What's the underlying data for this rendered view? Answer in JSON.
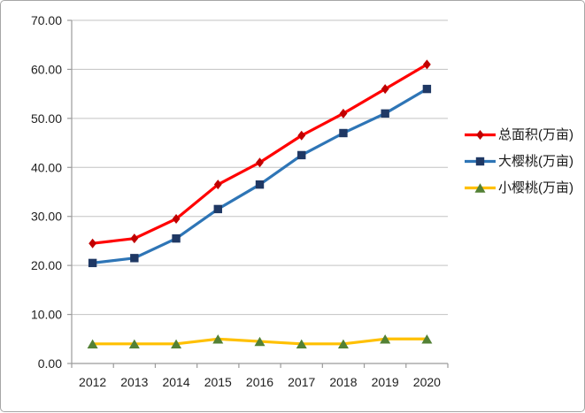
{
  "chart_data": {
    "type": "line",
    "title": "",
    "xlabel": "",
    "ylabel": "",
    "categories": [
      "2012",
      "2013",
      "2014",
      "2015",
      "2016",
      "2017",
      "2018",
      "2019",
      "2020"
    ],
    "series": [
      {
        "name": "总面积(万亩)",
        "values": [
          24.5,
          25.5,
          29.5,
          36.5,
          41,
          46.5,
          51,
          56,
          61
        ],
        "line_color": "#ff0000",
        "marker_color": "#c00000",
        "marker": "diamond"
      },
      {
        "name": "大樱桃(万亩)",
        "values": [
          20.5,
          21.5,
          25.5,
          31.5,
          36.5,
          42.5,
          47,
          51,
          56
        ],
        "line_color": "#2e75b6",
        "marker_color": "#1f3864",
        "marker": "square"
      },
      {
        "name": "小樱桃(万亩)",
        "values": [
          4,
          4,
          4,
          5,
          4.5,
          4,
          4,
          5,
          5
        ],
        "line_color": "#ffc000",
        "marker_color": "#538135",
        "marker": "triangle"
      }
    ],
    "ylim": [
      0,
      70
    ],
    "ytick_step": 10,
    "ytick_labels": [
      "0.00",
      "10.00",
      "20.00",
      "30.00",
      "40.00",
      "50.00",
      "60.00",
      "70.00"
    ],
    "grid": true,
    "legend_position": "right"
  },
  "colors": {
    "background": "#ffffff",
    "frame_border": "#a6a6a6",
    "gridline": "#c3c3c3",
    "axis": "#9b9b9b",
    "tick_label": "#1f1f1f",
    "legend_text": "#1a1a1a"
  }
}
